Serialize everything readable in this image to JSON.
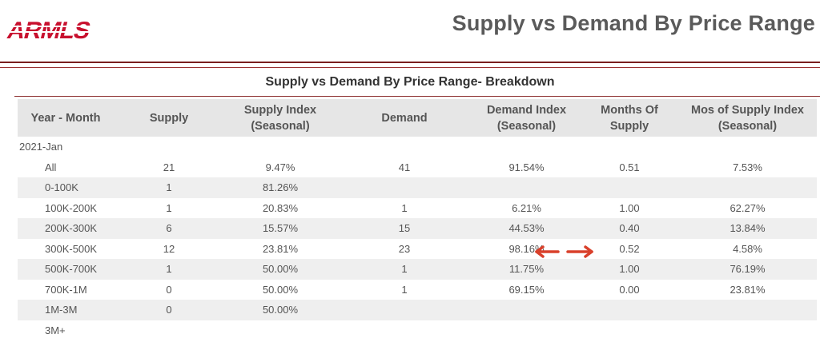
{
  "header": {
    "logo_text": "ARMLS",
    "title": "Supply vs Demand By Price Range"
  },
  "colors": {
    "brand": "#c8102e",
    "rule": "#7a1f1f",
    "arrow": "#d9402b"
  },
  "table": {
    "title": "Supply vs Demand By Price Range- Breakdown",
    "columns": [
      "Year - Month",
      "Supply",
      "Supply Index\n(Seasonal)",
      "Demand",
      "Demand Index\n(Seasonal)",
      "Months Of\nSupply",
      "Mos of Supply Index\n(Seasonal)"
    ],
    "group": "2021-Jan",
    "rows": [
      [
        "All",
        "21",
        "9.47%",
        "41",
        "91.54%",
        "0.51",
        "7.53%"
      ],
      [
        "0-100K",
        "1",
        "81.26%",
        "",
        "",
        "",
        ""
      ],
      [
        "100K-200K",
        "1",
        "20.83%",
        "1",
        "6.21%",
        "1.00",
        "62.27%"
      ],
      [
        "200K-300K",
        "6",
        "15.57%",
        "15",
        "44.53%",
        "0.40",
        "13.84%"
      ],
      [
        "300K-500K",
        "12",
        "23.81%",
        "23",
        "98.16%",
        "0.52",
        "4.58%"
      ],
      [
        "500K-700K",
        "1",
        "50.00%",
        "1",
        "11.75%",
        "1.00",
        "76.19%"
      ],
      [
        "700K-1M",
        "0",
        "50.00%",
        "1",
        "69.15%",
        "0.00",
        "23.81%"
      ],
      [
        "1M-3M",
        "0",
        "50.00%",
        "",
        "",
        "",
        ""
      ],
      [
        "3M+",
        "",
        "",
        "",
        "",
        "",
        ""
      ]
    ]
  }
}
